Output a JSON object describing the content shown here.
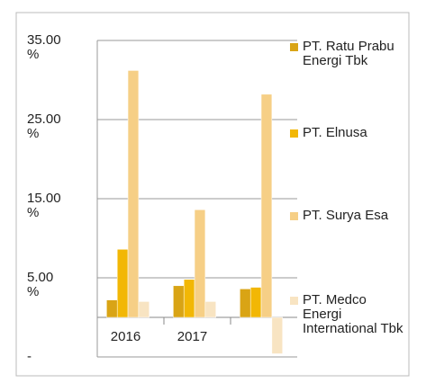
{
  "chart_data": {
    "type": "bar",
    "categories": [
      "2016",
      "2017",
      null
    ],
    "series": [
      {
        "name": "PT. Ratu Prabu Energi Tbk",
        "color": "#d9a415",
        "values": [
          2.2,
          4.0,
          3.6
        ]
      },
      {
        "name": "PT. Elnusa",
        "color": "#f2b705",
        "values": [
          8.6,
          4.8,
          3.8
        ]
      },
      {
        "name": "PT. Surya Esa",
        "color": "#f6cf86",
        "values": [
          31.2,
          13.6,
          28.2
        ]
      },
      {
        "name": "PT. Medco Energi International Tbk",
        "color": "#f8e4c2",
        "values": [
          2.0,
          2.0,
          -4.6
        ]
      }
    ],
    "ylim": [
      -5,
      35
    ],
    "yticks": [
      {
        "value": 35,
        "label": "35.00 %"
      },
      {
        "value": 25,
        "label": "25.00 %"
      },
      {
        "value": 15,
        "label": "15.00 %"
      },
      {
        "value": 5,
        "label": "5.00 %"
      },
      {
        "value": -5,
        "label": "-"
      }
    ],
    "grid": true,
    "legend": "right"
  }
}
